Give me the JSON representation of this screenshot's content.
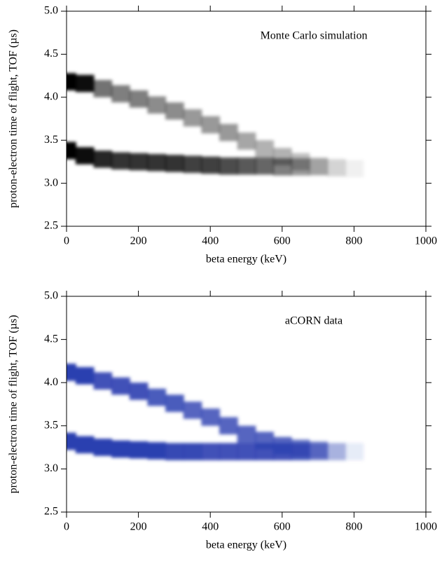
{
  "chart_data": [
    {
      "type": "density",
      "annotation": "Monte Carlo simulation",
      "color": "#000000",
      "xlabel": "beta energy (keV)",
      "ylabel": "proton-electron time of flight, TOF (µs)",
      "xlim": [
        0,
        1000
      ],
      "ylim": [
        2.5,
        5.0
      ],
      "xticks": [
        0,
        200,
        400,
        600,
        800,
        1000
      ],
      "yticks": [
        2.5,
        {
          "value": 3,
          "label": "3.0"
        },
        3.5,
        {
          "value": 4,
          "label": "4.0"
        },
        4.5,
        {
          "value": 5,
          "label": "5.0"
        }
      ],
      "x": [
        0,
        50,
        100,
        150,
        200,
        250,
        300,
        350,
        400,
        450,
        500,
        550,
        600,
        650,
        700,
        750,
        800
      ],
      "series": [
        {
          "values": [
            4.18,
            4.16,
            4.1,
            4.04,
            3.98,
            3.91,
            3.84,
            3.76,
            3.68,
            3.59,
            3.49,
            3.4,
            3.31,
            3.25,
            3.2,
            3.18,
            3.17
          ],
          "intensity": [
            1,
            0.95,
            0.55,
            0.5,
            0.5,
            0.45,
            0.45,
            0.4,
            0.4,
            0.4,
            0.35,
            0.3,
            0.3,
            0.25,
            0.15,
            0.08,
            0.03
          ]
        },
        {
          "values": [
            3.38,
            3.32,
            3.28,
            3.26,
            3.25,
            3.24,
            3.23,
            3.22,
            3.21,
            3.2,
            3.2,
            3.2,
            3.19,
            3.19,
            3.19,
            3.18,
            3.17
          ],
          "intensity": [
            1,
            0.95,
            0.85,
            0.8,
            0.8,
            0.8,
            0.8,
            0.75,
            0.75,
            0.7,
            0.65,
            0.6,
            0.5,
            0.4,
            0.25,
            0.1,
            0.03
          ]
        }
      ]
    },
    {
      "type": "density",
      "annotation": "aCORN data",
      "color": "#2b3fb0",
      "xlabel": "beta energy (keV)",
      "ylabel": "proton-electron time of flight, TOF (µs)",
      "xlim": [
        0,
        1000
      ],
      "ylim": [
        2.5,
        5.0
      ],
      "xticks": [
        0,
        200,
        400,
        600,
        800,
        1000
      ],
      "yticks": [
        2.5,
        {
          "value": 3,
          "label": "3.0"
        },
        3.5,
        {
          "value": 4,
          "label": "4.0"
        },
        4.5,
        {
          "value": 5,
          "label": "5.0"
        }
      ],
      "x": [
        0,
        50,
        100,
        150,
        200,
        250,
        300,
        350,
        400,
        450,
        500,
        550,
        600,
        650,
        700,
        750,
        800
      ],
      "series": [
        {
          "values": [
            4.12,
            4.08,
            4.02,
            3.96,
            3.9,
            3.83,
            3.76,
            3.68,
            3.6,
            3.5,
            3.4,
            3.33,
            3.27,
            3.24,
            3.22,
            3.2,
            3.2
          ],
          "intensity": [
            1,
            1,
            0.9,
            0.9,
            0.9,
            0.85,
            0.85,
            0.8,
            0.8,
            0.8,
            0.8,
            0.8,
            0.8,
            0.7,
            0.5,
            0.2,
            0.05
          ]
        },
        {
          "values": [
            3.32,
            3.28,
            3.25,
            3.23,
            3.22,
            3.21,
            3.2,
            3.2,
            3.2,
            3.2,
            3.2,
            3.2,
            3.2,
            3.2,
            3.2,
            3.2,
            3.2
          ],
          "intensity": [
            1,
            1,
            1,
            1,
            1,
            1,
            0.95,
            0.95,
            0.9,
            0.9,
            0.9,
            0.9,
            0.9,
            0.85,
            0.6,
            0.25,
            0.05
          ]
        }
      ]
    }
  ]
}
